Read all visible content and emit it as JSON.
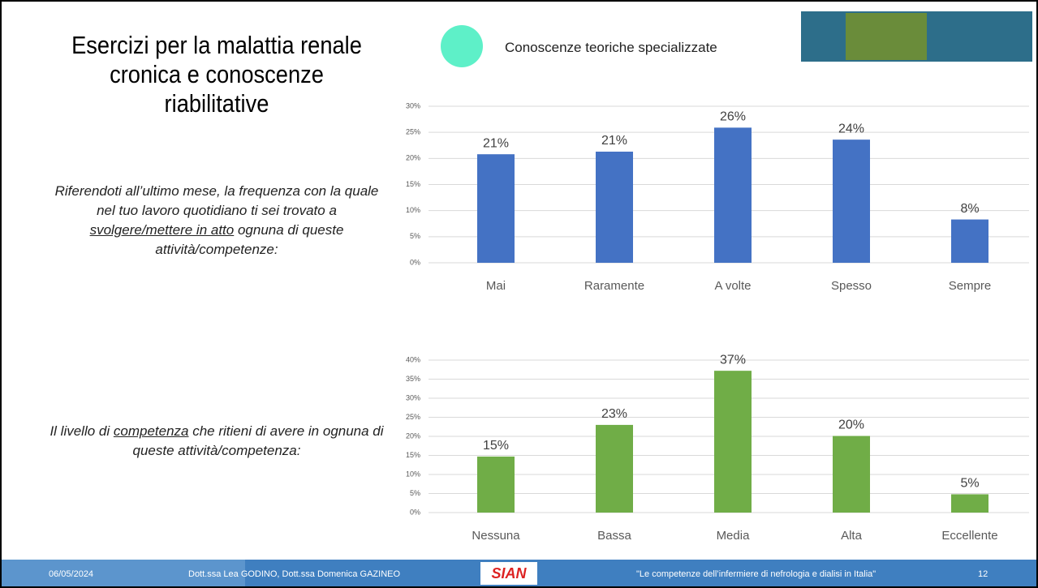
{
  "slide": {
    "title": "Esercizi per la malattia renale cronica e conoscenze riabilitative",
    "legend": {
      "label": "Conoscenze teoriche specializzate",
      "color": "#5ef0c8"
    },
    "prompt1": [
      "Riferendoti all’ultimo mese, la frequenza con la quale nel tuo lavoro quotidiano ti sei trovato a ",
      "svolgere/mettere in atto",
      " ognuna di queste attività/competenze:"
    ],
    "prompt2": [
      "Il livello di ",
      "competenza",
      " che ritieni di avere in ognuna di queste attività/competenza:"
    ],
    "footer": {
      "date": "06/05/2024",
      "authors": "Dott.ssa Lea GODINO, Dott.ssa Domenica GAZINEO",
      "logo": "SIAN",
      "quote": "\"Le competenze dell’infermiere di nefrologia e dialisi in Italia\"",
      "page": "12"
    }
  },
  "chart_data": [
    {
      "type": "bar",
      "categories": [
        "Mai",
        "Raramente",
        "A volte",
        "Spesso",
        "Sempre"
      ],
      "values": [
        20.8,
        21.3,
        25.9,
        23.6,
        8.3
      ],
      "value_labels": [
        "21%",
        "21%",
        "26%",
        "24%",
        "8%"
      ],
      "color": "#4472c4",
      "ylim": [
        0,
        30
      ],
      "grid": true,
      "yticks": [
        {
          "value": 0,
          "label": "0%"
        },
        {
          "value": 5,
          "label": "5%"
        },
        {
          "value": 10,
          "label": "10%"
        },
        {
          "value": 15,
          "label": "15%"
        },
        {
          "value": 20,
          "label": "20%"
        },
        {
          "value": 25,
          "label": "25%"
        },
        {
          "value": 30,
          "label": "30%"
        }
      ]
    },
    {
      "type": "bar",
      "categories": [
        "Nessuna",
        "Bassa",
        "Media",
        "Alta",
        "Eccellente"
      ],
      "values": [
        14.7,
        23.0,
        37.2,
        20.1,
        4.8
      ],
      "value_labels": [
        "15%",
        "23%",
        "37%",
        "20%",
        "5%"
      ],
      "color": "#70ad47",
      "ylim": [
        0,
        40
      ],
      "grid": true,
      "yticks": [
        {
          "value": 0,
          "label": "0%"
        },
        {
          "value": 5,
          "label": "5%"
        },
        {
          "value": 10,
          "label": "10%"
        },
        {
          "value": 15,
          "label": "15%"
        },
        {
          "value": 20,
          "label": "20%"
        },
        {
          "value": 25,
          "label": "25%"
        },
        {
          "value": 30,
          "label": "30%"
        },
        {
          "value": 35,
          "label": "35%"
        },
        {
          "value": 40,
          "label": "40%"
        }
      ]
    }
  ]
}
